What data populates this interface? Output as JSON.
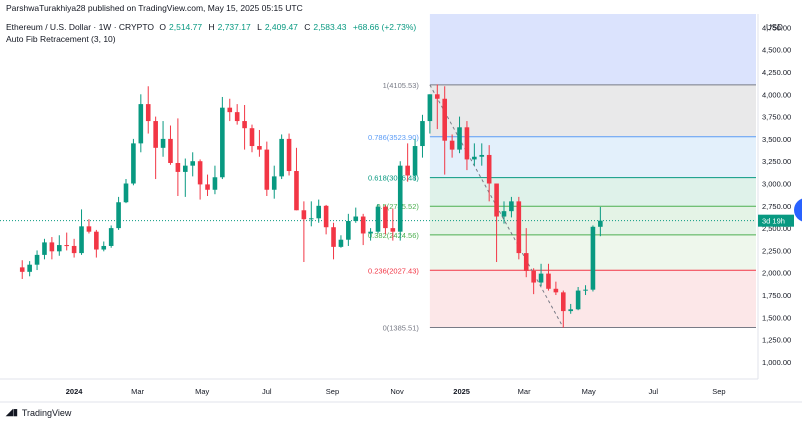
{
  "header": {
    "credit": "ParshwaTurakhiya28 published on TradingView.com, May 15, 2025 05:15 UTC",
    "symbol": "Ethereum / U.S. Dollar · 1W · CRYPTO",
    "open_label": "O",
    "open_value": "2,514.77",
    "high_label": "H",
    "high_value": "2,737.17",
    "low_label": "L",
    "low_value": "2,409.47",
    "close_label": "C",
    "close_value": "2,583.43",
    "change_value": "+68.66 (+2.73%)",
    "indicator": "Auto Fib Retracement (3, 10)"
  },
  "footer": {
    "brand": "TradingView",
    "brand_icon": "tradingview-logo-icon"
  },
  "colors": {
    "up": "#089981",
    "down": "#f23645",
    "fib_label": "#5b9cf6",
    "accent": "#2962ff"
  },
  "chart_data": {
    "type": "candlestick",
    "currency_label": "USD",
    "y_ticks": [
      "4,750.00",
      "4,500.00",
      "4,250.00",
      "4,000.00",
      "3,750.00",
      "3,500.00",
      "3,250.00",
      "3,000.00",
      "2,750.00",
      "2,500.00",
      "2,250.00",
      "2,000.00",
      "1,750.00",
      "1,500.00",
      "1,250.00",
      "1,000.00"
    ],
    "y_tick_values": [
      4750,
      4500,
      4250,
      4000,
      3750,
      3500,
      3250,
      3000,
      2750,
      2500,
      2250,
      2000,
      1750,
      1500,
      1250,
      1000
    ],
    "ylim": [
      820,
      4900
    ],
    "x_ticks": [
      {
        "label": "2024",
        "x": "2024-01-01",
        "bold": true
      },
      {
        "label": "Mar",
        "x": "2024-03-01"
      },
      {
        "label": "May",
        "x": "2024-05-01"
      },
      {
        "label": "Jul",
        "x": "2024-07-01"
      },
      {
        "label": "Sep",
        "x": "2024-09-01"
      },
      {
        "label": "Nov",
        "x": "2024-11-01"
      },
      {
        "label": "2025",
        "x": "2025-01-01",
        "bold": true
      },
      {
        "label": "Mar",
        "x": "2025-03-01"
      },
      {
        "label": "May",
        "x": "2025-05-01"
      },
      {
        "label": "Jul",
        "x": "2025-07-01"
      },
      {
        "label": "Sep",
        "x": "2025-09-01"
      }
    ],
    "xlim": [
      "2023-10-23",
      "2025-10-06"
    ],
    "fib_levels": [
      {
        "ratio": "1",
        "price": 4105.53,
        "label": "1(4105.53)",
        "color": "#787b86",
        "fill": "#e9e9ea"
      },
      {
        "ratio": "0.786",
        "price": 3523.9,
        "label": "0.786(3523.90)",
        "color": "#5b9cf6",
        "fill": "#e3f0fb"
      },
      {
        "ratio": "0.618",
        "price": 3066.48,
        "label": "0.618(3066.48)",
        "color": "#089981",
        "fill": "#dff2ea"
      },
      {
        "ratio": "0.5",
        "price": 2745.52,
        "label": "0.5(2745.52)",
        "color": "#4caf50",
        "fill": "#e4f3e6"
      },
      {
        "ratio": "0.382",
        "price": 2424.56,
        "label": "0.382(2424.56)",
        "color": "#4caf50",
        "fill": "#eef7ec"
      },
      {
        "ratio": "0.236",
        "price": 2027.43,
        "label": "0.236(2027.43)",
        "color": "#f23645",
        "fill": "#fce7e8"
      },
      {
        "ratio": "0",
        "price": 1385.51,
        "label": "0(1385.51)",
        "color": "#787b86"
      }
    ],
    "fib_zone_start": "2024-12-02",
    "fib_top_shading": {
      "from": 4105.53,
      "to": 4900,
      "color": "#dbe3fd"
    },
    "current_price_line": 2583.43,
    "countdown_label": "3d 19h",
    "candles": [
      {
        "d": "2023-11-13",
        "o": 2060,
        "h": 2140,
        "l": 1930,
        "c": 2010
      },
      {
        "d": "2023-11-20",
        "o": 2010,
        "h": 2130,
        "l": 1960,
        "c": 2090
      },
      {
        "d": "2023-11-27",
        "o": 2090,
        "h": 2250,
        "l": 2030,
        "c": 2200
      },
      {
        "d": "2023-12-04",
        "o": 2200,
        "h": 2380,
        "l": 2150,
        "c": 2340
      },
      {
        "d": "2023-12-11",
        "o": 2340,
        "h": 2400,
        "l": 2150,
        "c": 2240
      },
      {
        "d": "2023-12-18",
        "o": 2240,
        "h": 2420,
        "l": 2190,
        "c": 2310
      },
      {
        "d": "2023-12-25",
        "o": 2310,
        "h": 2450,
        "l": 2250,
        "c": 2300
      },
      {
        "d": "2024-01-01",
        "o": 2300,
        "h": 2380,
        "l": 2170,
        "c": 2220
      },
      {
        "d": "2024-01-08",
        "o": 2220,
        "h": 2710,
        "l": 2200,
        "c": 2520
      },
      {
        "d": "2024-01-15",
        "o": 2520,
        "h": 2600,
        "l": 2440,
        "c": 2460
      },
      {
        "d": "2024-01-22",
        "o": 2460,
        "h": 2480,
        "l": 2170,
        "c": 2260
      },
      {
        "d": "2024-01-29",
        "o": 2260,
        "h": 2350,
        "l": 2240,
        "c": 2300
      },
      {
        "d": "2024-02-05",
        "o": 2300,
        "h": 2530,
        "l": 2280,
        "c": 2500
      },
      {
        "d": "2024-02-12",
        "o": 2500,
        "h": 2850,
        "l": 2480,
        "c": 2790
      },
      {
        "d": "2024-02-19",
        "o": 2790,
        "h": 3050,
        "l": 2780,
        "c": 3000
      },
      {
        "d": "2024-02-26",
        "o": 3000,
        "h": 3500,
        "l": 2980,
        "c": 3450
      },
      {
        "d": "2024-03-04",
        "o": 3450,
        "h": 4000,
        "l": 3350,
        "c": 3890
      },
      {
        "d": "2024-03-11",
        "o": 3890,
        "h": 4090,
        "l": 3560,
        "c": 3700
      },
      {
        "d": "2024-03-18",
        "o": 3700,
        "h": 3750,
        "l": 3050,
        "c": 3400
      },
      {
        "d": "2024-03-25",
        "o": 3400,
        "h": 3700,
        "l": 3300,
        "c": 3500
      },
      {
        "d": "2024-04-01",
        "o": 3500,
        "h": 3650,
        "l": 3210,
        "c": 3230
      },
      {
        "d": "2024-04-08",
        "o": 3230,
        "h": 3730,
        "l": 2860,
        "c": 3130
      },
      {
        "d": "2024-04-15",
        "o": 3130,
        "h": 3280,
        "l": 2850,
        "c": 3200
      },
      {
        "d": "2024-04-22",
        "o": 3200,
        "h": 3350,
        "l": 3080,
        "c": 3250
      },
      {
        "d": "2024-04-29",
        "o": 3250,
        "h": 3270,
        "l": 2820,
        "c": 2990
      },
      {
        "d": "2024-05-06",
        "o": 2990,
        "h": 3100,
        "l": 2860,
        "c": 2930
      },
      {
        "d": "2024-05-13",
        "o": 2930,
        "h": 3200,
        "l": 2880,
        "c": 3070
      },
      {
        "d": "2024-05-20",
        "o": 3070,
        "h": 3970,
        "l": 3050,
        "c": 3850
      },
      {
        "d": "2024-05-27",
        "o": 3850,
        "h": 3950,
        "l": 3700,
        "c": 3800
      },
      {
        "d": "2024-06-03",
        "o": 3800,
        "h": 3890,
        "l": 3660,
        "c": 3700
      },
      {
        "d": "2024-06-10",
        "o": 3700,
        "h": 3880,
        "l": 3380,
        "c": 3620
      },
      {
        "d": "2024-06-17",
        "o": 3620,
        "h": 3660,
        "l": 3350,
        "c": 3420
      },
      {
        "d": "2024-06-24",
        "o": 3420,
        "h": 3600,
        "l": 3300,
        "c": 3380
      },
      {
        "d": "2024-07-01",
        "o": 3380,
        "h": 3470,
        "l": 2860,
        "c": 2930
      },
      {
        "d": "2024-07-08",
        "o": 2930,
        "h": 3200,
        "l": 2830,
        "c": 3080
      },
      {
        "d": "2024-07-15",
        "o": 3080,
        "h": 3550,
        "l": 3050,
        "c": 3500
      },
      {
        "d": "2024-07-22",
        "o": 3500,
        "h": 3560,
        "l": 3090,
        "c": 3140
      },
      {
        "d": "2024-07-29",
        "o": 3140,
        "h": 3400,
        "l": 2700,
        "c": 2700
      },
      {
        "d": "2024-08-05",
        "o": 2700,
        "h": 2800,
        "l": 2120,
        "c": 2600
      },
      {
        "d": "2024-08-12",
        "o": 2600,
        "h": 2800,
        "l": 2520,
        "c": 2610
      },
      {
        "d": "2024-08-19",
        "o": 2610,
        "h": 2820,
        "l": 2560,
        "c": 2750
      },
      {
        "d": "2024-08-26",
        "o": 2750,
        "h": 2760,
        "l": 2430,
        "c": 2510
      },
      {
        "d": "2024-09-02",
        "o": 2510,
        "h": 2560,
        "l": 2150,
        "c": 2290
      },
      {
        "d": "2024-09-09",
        "o": 2290,
        "h": 2420,
        "l": 2280,
        "c": 2370
      },
      {
        "d": "2024-09-16",
        "o": 2370,
        "h": 2660,
        "l": 2300,
        "c": 2580
      },
      {
        "d": "2024-09-23",
        "o": 2580,
        "h": 2730,
        "l": 2560,
        "c": 2630
      },
      {
        "d": "2024-09-30",
        "o": 2630,
        "h": 2660,
        "l": 2310,
        "c": 2440
      },
      {
        "d": "2024-10-07",
        "o": 2440,
        "h": 2500,
        "l": 2360,
        "c": 2460
      },
      {
        "d": "2024-10-14",
        "o": 2460,
        "h": 2770,
        "l": 2440,
        "c": 2740
      },
      {
        "d": "2024-10-21",
        "o": 2740,
        "h": 2760,
        "l": 2430,
        "c": 2500
      },
      {
        "d": "2024-10-28",
        "o": 2500,
        "h": 2720,
        "l": 2360,
        "c": 2460
      },
      {
        "d": "2024-11-04",
        "o": 2460,
        "h": 3250,
        "l": 2360,
        "c": 3200
      },
      {
        "d": "2024-11-11",
        "o": 3200,
        "h": 3450,
        "l": 3020,
        "c": 3090
      },
      {
        "d": "2024-11-18",
        "o": 3090,
        "h": 3500,
        "l": 3030,
        "c": 3420
      },
      {
        "d": "2024-11-25",
        "o": 3420,
        "h": 3770,
        "l": 3290,
        "c": 3700
      },
      {
        "d": "2024-12-02",
        "o": 3700,
        "h": 4000,
        "l": 3560,
        "c": 4000
      },
      {
        "d": "2024-12-09",
        "o": 4000,
        "h": 4110,
        "l": 3610,
        "c": 3950
      },
      {
        "d": "2024-12-16",
        "o": 3950,
        "h": 4090,
        "l": 3100,
        "c": 3480
      },
      {
        "d": "2024-12-23",
        "o": 3480,
        "h": 3550,
        "l": 3290,
        "c": 3380
      },
      {
        "d": "2024-12-30",
        "o": 3380,
        "h": 3750,
        "l": 3340,
        "c": 3630
      },
      {
        "d": "2025-01-06",
        "o": 3630,
        "h": 3700,
        "l": 3150,
        "c": 3270
      },
      {
        "d": "2025-01-13",
        "o": 3270,
        "h": 3450,
        "l": 3200,
        "c": 3300
      },
      {
        "d": "2025-01-20",
        "o": 3300,
        "h": 3450,
        "l": 3200,
        "c": 3320
      },
      {
        "d": "2025-01-27",
        "o": 3320,
        "h": 3430,
        "l": 2800,
        "c": 3000
      },
      {
        "d": "2025-02-03",
        "o": 3000,
        "h": 3000,
        "l": 2120,
        "c": 2630
      },
      {
        "d": "2025-02-10",
        "o": 2630,
        "h": 2800,
        "l": 2550,
        "c": 2690
      },
      {
        "d": "2025-02-17",
        "o": 2690,
        "h": 2850,
        "l": 2620,
        "c": 2800
      },
      {
        "d": "2025-02-24",
        "o": 2800,
        "h": 2850,
        "l": 2150,
        "c": 2220
      },
      {
        "d": "2025-03-03",
        "o": 2220,
        "h": 2500,
        "l": 1950,
        "c": 2020
      },
      {
        "d": "2025-03-10",
        "o": 2020,
        "h": 2050,
        "l": 1760,
        "c": 1890
      },
      {
        "d": "2025-03-17",
        "o": 1890,
        "h": 2100,
        "l": 1850,
        "c": 1990
      },
      {
        "d": "2025-03-24",
        "o": 1990,
        "h": 2100,
        "l": 1800,
        "c": 1820
      },
      {
        "d": "2025-03-31",
        "o": 1820,
        "h": 1900,
        "l": 1750,
        "c": 1780
      },
      {
        "d": "2025-04-07",
        "o": 1780,
        "h": 1800,
        "l": 1385,
        "c": 1570
      },
      {
        "d": "2025-04-14",
        "o": 1570,
        "h": 1650,
        "l": 1540,
        "c": 1590
      },
      {
        "d": "2025-04-21",
        "o": 1590,
        "h": 1840,
        "l": 1580,
        "c": 1800
      },
      {
        "d": "2025-04-28",
        "o": 1800,
        "h": 1860,
        "l": 1750,
        "c": 1810
      },
      {
        "d": "2025-05-05",
        "o": 1810,
        "h": 2530,
        "l": 1790,
        "c": 2514.77
      },
      {
        "d": "2025-05-12",
        "o": 2514.77,
        "h": 2737.17,
        "l": 2409.47,
        "c": 2583.43
      }
    ]
  }
}
